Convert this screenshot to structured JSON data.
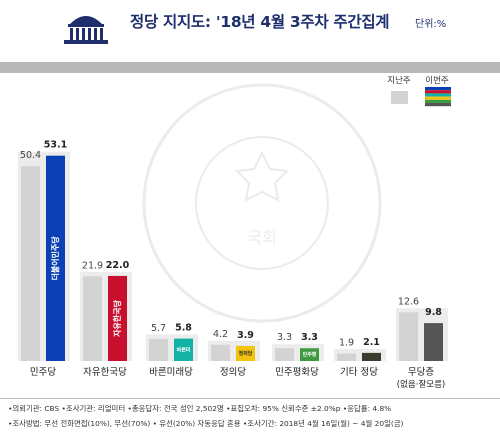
{
  "header": {
    "title": "정당 지지도: '18년 4월 3주차 주간집계",
    "unit": "단위:%",
    "logo_icon": "national-assembly-dome-icon"
  },
  "chart_data": {
    "type": "bar",
    "legend": {
      "previous": "지난주",
      "current": "이번주",
      "placement": "top-right"
    },
    "categories": [
      "민주당",
      "자유한국당",
      "바른미래당",
      "정의당",
      "민주평화당",
      "기타 정당",
      "무당층"
    ],
    "category_sublabels": [
      "",
      "",
      "",
      "",
      "",
      "",
      "(없음·잘모름)"
    ],
    "series": [
      {
        "name": "지난주",
        "values": [
          50.4,
          21.9,
          5.7,
          4.2,
          3.3,
          1.9,
          12.6
        ]
      },
      {
        "name": "이번주",
        "values": [
          53.1,
          22.0,
          5.8,
          3.9,
          3.3,
          2.1,
          9.8
        ]
      }
    ],
    "colors": {
      "previous": "#d3d3d3",
      "current": [
        "#0b41b5",
        "#c8102e",
        "#12b3a4",
        "#f2c40f",
        "#3f9b41",
        "#3b3b2e",
        "#555555"
      ],
      "legend_swatches": [
        "#0b41b5",
        "#c8102e",
        "#12b3a4",
        "#f2c40f",
        "#3f9b41",
        "#555555"
      ],
      "panel": "#ececec"
    },
    "bar_logo_text": [
      "더불어민주당",
      "자유한국당",
      "바른미래당",
      "정의당",
      "민주평화당",
      "",
      ""
    ],
    "ylim": [
      0,
      60
    ],
    "grid": false,
    "watermark_text": "THE NATIONAL ASSEMBLY OF THE REPUBLIC OF KOREA · 대한민국국회 · 국회"
  },
  "notes": {
    "line1": "•의뢰기관: CBS  •조사기관: 리얼미터  •총응답자: 전국 성인 2,502명  •표집오차: 95% 신뢰수준 ±2.0%p  •응답률: 4.8%",
    "line2": "•조사방법: 무선 전화면접(10%), 무선(70%) • 유선(20%) 자동응답 혼용  •조사기간: 2018년 4월 16일(월) ~ 4월 20일(금)"
  }
}
